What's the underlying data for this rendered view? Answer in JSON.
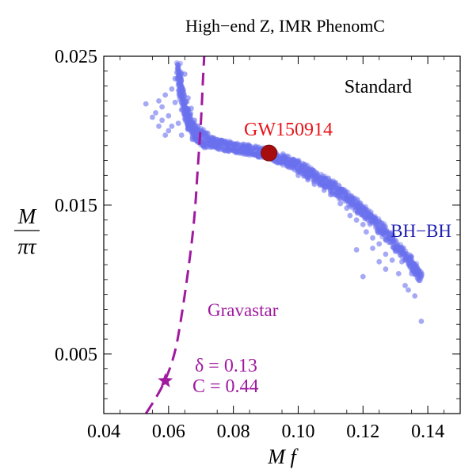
{
  "chart_data": {
    "type": "scatter",
    "title": "High−end Z,   IMR PhenomC",
    "xlabel": "M f",
    "ylabel": {
      "numerator": "M",
      "denominator": "πτ"
    },
    "xlim": [
      0.04,
      0.15
    ],
    "ylim": [
      0.001,
      0.025
    ],
    "x_ticks": [
      {
        "value": 0.04,
        "label": "0.04"
      },
      {
        "value": 0.06,
        "label": "0.06"
      },
      {
        "value": 0.08,
        "label": "0.08"
      },
      {
        "value": 0.1,
        "label": "0.10"
      },
      {
        "value": 0.12,
        "label": "0.12"
      },
      {
        "value": 0.14,
        "label": "0.14"
      }
    ],
    "y_ticks": [
      {
        "value": 0.005,
        "label": "0.005"
      },
      {
        "value": 0.015,
        "label": "0.015"
      },
      {
        "value": 0.025,
        "label": "0.025"
      }
    ],
    "grid": false,
    "colors": {
      "bh": "#6a72ee",
      "gravastar": "#a0199f",
      "gw": "#a80d0d",
      "gw_label": "#e8141a",
      "bh_label": "#1f1fb0"
    },
    "series": [
      {
        "name": "BH−BH",
        "band_center": [
          [
            0.063,
            0.0242
          ],
          [
            0.064,
            0.0225
          ],
          [
            0.066,
            0.0208
          ],
          [
            0.068,
            0.0199
          ],
          [
            0.071,
            0.0194
          ],
          [
            0.075,
            0.0191
          ],
          [
            0.08,
            0.0189
          ],
          [
            0.085,
            0.0187
          ],
          [
            0.09,
            0.0185
          ],
          [
            0.095,
            0.0181
          ],
          [
            0.1,
            0.0176
          ],
          [
            0.105,
            0.017
          ],
          [
            0.11,
            0.0163
          ],
          [
            0.115,
            0.0155
          ],
          [
            0.12,
            0.0146
          ],
          [
            0.125,
            0.0136
          ],
          [
            0.13,
            0.0124
          ],
          [
            0.135,
            0.011
          ],
          [
            0.138,
            0.0102
          ]
        ],
        "scatter": [
          [
            0.053,
            0.0218
          ],
          [
            0.056,
            0.0212
          ],
          [
            0.057,
            0.022
          ],
          [
            0.058,
            0.0207
          ],
          [
            0.058,
            0.0216
          ],
          [
            0.059,
            0.0224
          ],
          [
            0.06,
            0.021
          ],
          [
            0.06,
            0.02
          ],
          [
            0.061,
            0.0228
          ],
          [
            0.061,
            0.0203
          ],
          [
            0.062,
            0.0219
          ],
          [
            0.062,
            0.0235
          ],
          [
            0.063,
            0.0205
          ],
          [
            0.063,
            0.0244
          ],
          [
            0.064,
            0.0214
          ],
          [
            0.064,
            0.023
          ],
          [
            0.064,
            0.0197
          ],
          [
            0.065,
            0.0238
          ],
          [
            0.065,
            0.0208
          ],
          [
            0.066,
            0.0222
          ],
          [
            0.066,
            0.0201
          ],
          [
            0.067,
            0.0215
          ],
          [
            0.067,
            0.0199
          ],
          [
            0.068,
            0.0207
          ],
          [
            0.069,
            0.02
          ],
          [
            0.059,
            0.0197
          ],
          [
            0.057,
            0.0203
          ],
          [
            0.055,
            0.0209
          ],
          [
            0.1,
            0.017
          ],
          [
            0.103,
            0.0167
          ],
          [
            0.105,
            0.0164
          ],
          [
            0.107,
            0.0168
          ],
          [
            0.108,
            0.016
          ],
          [
            0.11,
            0.0157
          ],
          [
            0.112,
            0.0161
          ],
          [
            0.113,
            0.0151
          ],
          [
            0.115,
            0.0148
          ],
          [
            0.116,
            0.0143
          ],
          [
            0.117,
            0.0152
          ],
          [
            0.118,
            0.014
          ],
          [
            0.119,
            0.0146
          ],
          [
            0.12,
            0.0137
          ],
          [
            0.121,
            0.0132
          ],
          [
            0.122,
            0.0143
          ],
          [
            0.123,
            0.0128
          ],
          [
            0.123,
            0.0121
          ],
          [
            0.124,
            0.0138
          ],
          [
            0.125,
            0.0124
          ],
          [
            0.125,
            0.0112
          ],
          [
            0.126,
            0.0131
          ],
          [
            0.127,
            0.0117
          ],
          [
            0.128,
            0.0125
          ],
          [
            0.129,
            0.0113
          ],
          [
            0.13,
            0.0119
          ],
          [
            0.131,
            0.0104
          ],
          [
            0.132,
            0.0112
          ],
          [
            0.133,
            0.0096
          ],
          [
            0.134,
            0.0093
          ],
          [
            0.135,
            0.0104
          ],
          [
            0.136,
            0.0089
          ],
          [
            0.138,
            0.0072
          ],
          [
            0.12,
            0.0102
          ],
          [
            0.127,
            0.0107
          ],
          [
            0.118,
            0.012
          ]
        ]
      },
      {
        "name": "Gravastar",
        "style": "dashed",
        "points": [
          [
            0.053,
            0.001
          ],
          [
            0.056,
            0.002
          ],
          [
            0.059,
            0.0032
          ],
          [
            0.062,
            0.005
          ],
          [
            0.064,
            0.0075
          ],
          [
            0.066,
            0.0105
          ],
          [
            0.068,
            0.014
          ],
          [
            0.069,
            0.0175
          ],
          [
            0.07,
            0.0205
          ],
          [
            0.0705,
            0.023
          ],
          [
            0.071,
            0.025
          ]
        ]
      }
    ],
    "markers": [
      {
        "name": "GW150914",
        "shape": "circle",
        "x": 0.091,
        "y": 0.0185
      },
      {
        "name": "gravastar-point",
        "shape": "star",
        "x": 0.059,
        "y": 0.0032,
        "label_lines": [
          "δ = 0.13",
          "C = 0.44"
        ]
      }
    ],
    "annotations": {
      "standard": "Standard",
      "gw": "GW150914",
      "bh": "BH−BH",
      "gravastar": "Gravastar",
      "delta": "δ = 0.13",
      "c": "C = 0.44"
    }
  }
}
